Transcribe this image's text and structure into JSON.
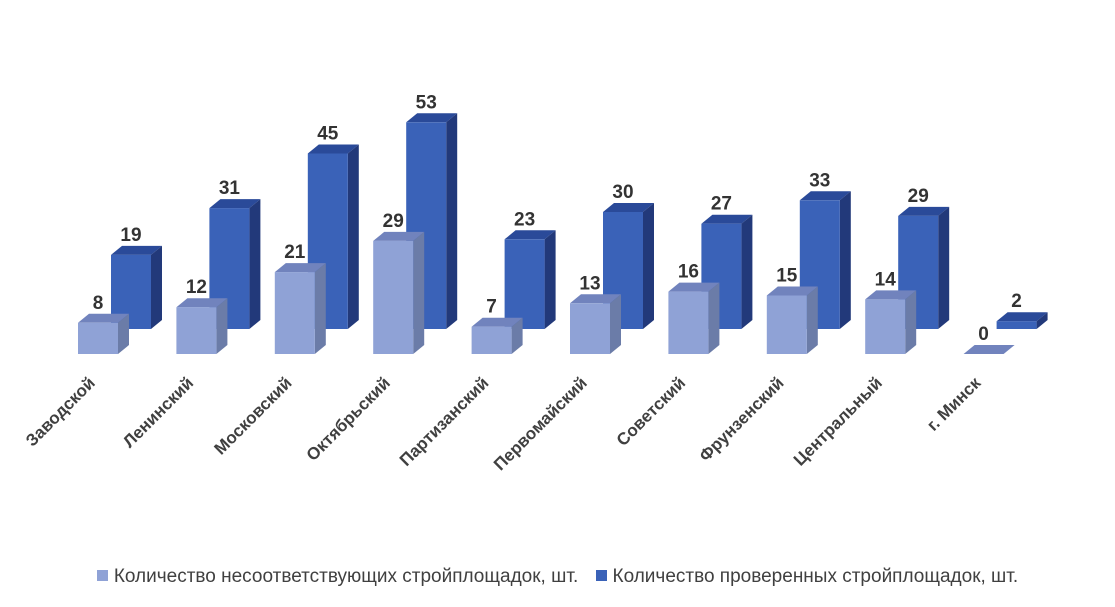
{
  "chart_data": {
    "type": "bar",
    "style": "3d-clustered-column",
    "categories": [
      "Заводской",
      "Ленинский",
      "Московский",
      "Октябрьский",
      "Партизанский",
      "Первомайский",
      "Советский",
      "Фрунзенский",
      "Центральный",
      "г. Минск"
    ],
    "series": [
      {
        "name": "Количество несоответствующих стройплощадок,  шт.",
        "color": "#8fa2d6",
        "values": [
          8,
          12,
          21,
          29,
          7,
          13,
          16,
          15,
          14,
          0
        ]
      },
      {
        "name": "Количество проверенных  стройплощадок,  шт.",
        "color": "#3a62b8",
        "values": [
          19,
          31,
          45,
          53,
          23,
          30,
          27,
          33,
          29,
          2
        ]
      }
    ],
    "ylim": [
      0,
      53
    ],
    "grid": false,
    "legend_position": "bottom",
    "data_labels": true
  }
}
